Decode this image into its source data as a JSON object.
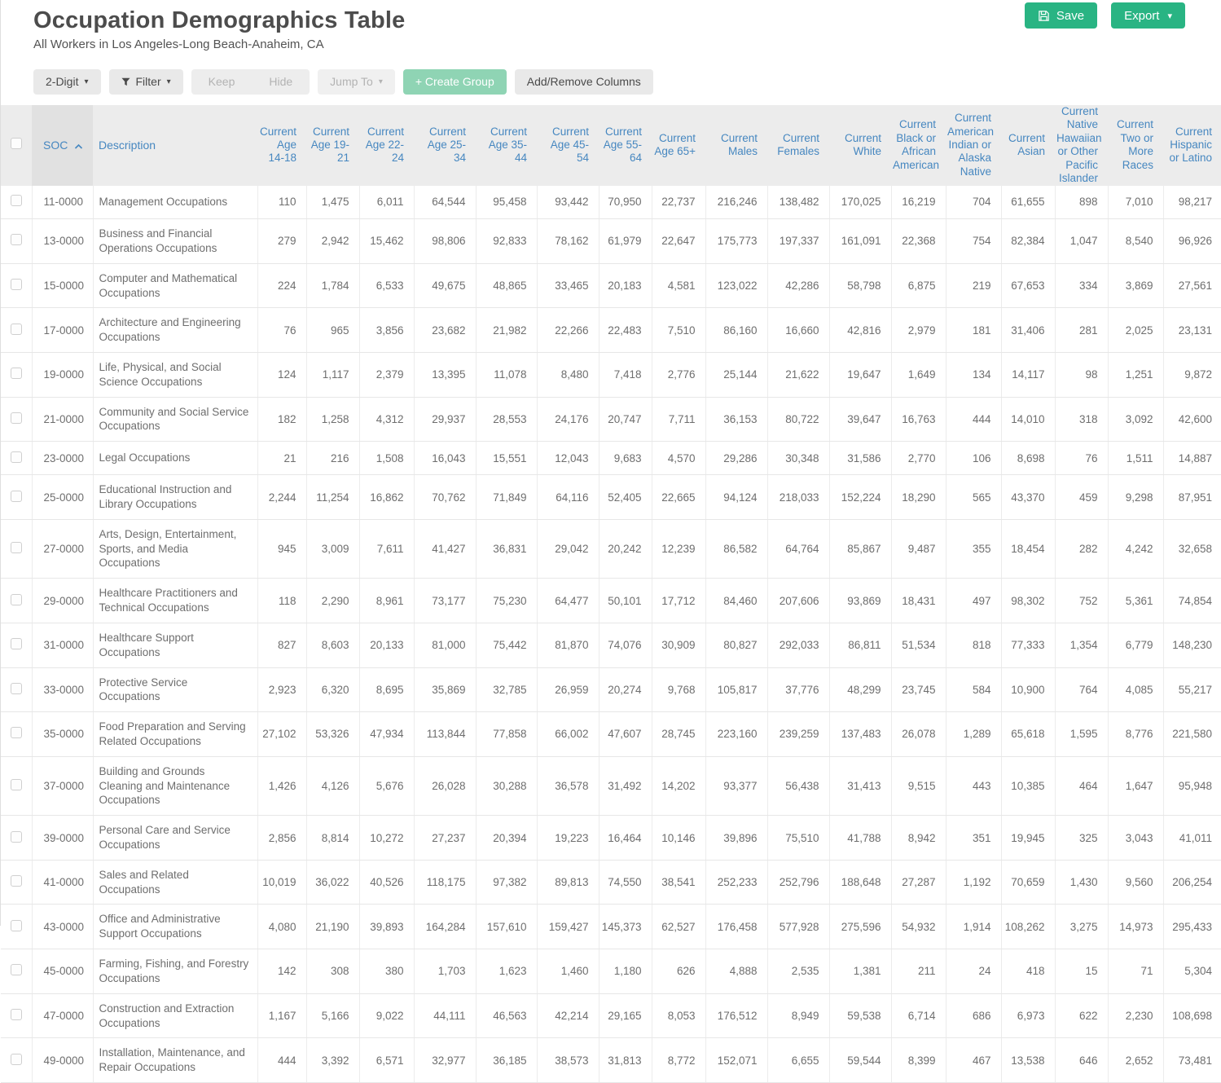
{
  "page": {
    "title": "Occupation Demographics Table",
    "subtitle": "All Workers in Los Angeles-Long Beach-Anaheim, CA"
  },
  "actions": {
    "save": "Save",
    "export": "Export"
  },
  "toolbar": {
    "digit": "2-Digit",
    "filter": "Filter",
    "keep": "Keep",
    "hide": "Hide",
    "jump_to": "Jump To",
    "create_group": "+ Create Group",
    "add_remove_columns": "Add/Remove Columns"
  },
  "colors": {
    "accent_green": "#29b483",
    "muted_green": "#8fd4b4",
    "header_blue": "#4687c0"
  },
  "table": {
    "sort": {
      "column": "SOC",
      "direction": "ascending"
    },
    "columns": {
      "soc": "SOC",
      "description": "Description",
      "numeric": [
        "Current Age 14-18",
        "Current Age 19-21",
        "Current Age 22-24",
        "Current Age 25-34",
        "Current Age 35-44",
        "Current Age 45-54",
        "Current Age 55-64",
        "Current Age 65+",
        "Current Males",
        "Current Females",
        "Current White",
        "Current Black or African American",
        "Current American Indian or Alaska Native",
        "Current Asian",
        "Current Native Hawaiian or Other Pacific Islander",
        "Current Two or More Races",
        "Current Hispanic or Latino"
      ]
    },
    "rows": [
      {
        "soc": "11-0000",
        "description": "Management Occupations",
        "values": [
          "110",
          "1,475",
          "6,011",
          "64,544",
          "95,458",
          "93,442",
          "70,950",
          "22,737",
          "216,246",
          "138,482",
          "170,025",
          "16,219",
          "704",
          "61,655",
          "898",
          "7,010",
          "98,217"
        ]
      },
      {
        "soc": "13-0000",
        "description": "Business and Financial Operations Occupations",
        "values": [
          "279",
          "2,942",
          "15,462",
          "98,806",
          "92,833",
          "78,162",
          "61,979",
          "22,647",
          "175,773",
          "197,337",
          "161,091",
          "22,368",
          "754",
          "82,384",
          "1,047",
          "8,540",
          "96,926"
        ]
      },
      {
        "soc": "15-0000",
        "description": "Computer and Mathematical Occupations",
        "values": [
          "224",
          "1,784",
          "6,533",
          "49,675",
          "48,865",
          "33,465",
          "20,183",
          "4,581",
          "123,022",
          "42,286",
          "58,798",
          "6,875",
          "219",
          "67,653",
          "334",
          "3,869",
          "27,561"
        ]
      },
      {
        "soc": "17-0000",
        "description": "Architecture and Engineering Occupations",
        "values": [
          "76",
          "965",
          "3,856",
          "23,682",
          "21,982",
          "22,266",
          "22,483",
          "7,510",
          "86,160",
          "16,660",
          "42,816",
          "2,979",
          "181",
          "31,406",
          "281",
          "2,025",
          "23,131"
        ]
      },
      {
        "soc": "19-0000",
        "description": "Life, Physical, and Social Science Occupations",
        "values": [
          "124",
          "1,117",
          "2,379",
          "13,395",
          "11,078",
          "8,480",
          "7,418",
          "2,776",
          "25,144",
          "21,622",
          "19,647",
          "1,649",
          "134",
          "14,117",
          "98",
          "1,251",
          "9,872"
        ]
      },
      {
        "soc": "21-0000",
        "description": "Community and Social Service Occupations",
        "values": [
          "182",
          "1,258",
          "4,312",
          "29,937",
          "28,553",
          "24,176",
          "20,747",
          "7,711",
          "36,153",
          "80,722",
          "39,647",
          "16,763",
          "444",
          "14,010",
          "318",
          "3,092",
          "42,600"
        ]
      },
      {
        "soc": "23-0000",
        "description": "Legal Occupations",
        "values": [
          "21",
          "216",
          "1,508",
          "16,043",
          "15,551",
          "12,043",
          "9,683",
          "4,570",
          "29,286",
          "30,348",
          "31,586",
          "2,770",
          "106",
          "8,698",
          "76",
          "1,511",
          "14,887"
        ]
      },
      {
        "soc": "25-0000",
        "description": "Educational Instruction and Library Occupations",
        "values": [
          "2,244",
          "11,254",
          "16,862",
          "70,762",
          "71,849",
          "64,116",
          "52,405",
          "22,665",
          "94,124",
          "218,033",
          "152,224",
          "18,290",
          "565",
          "43,370",
          "459",
          "9,298",
          "87,951"
        ]
      },
      {
        "soc": "27-0000",
        "description": "Arts, Design, Entertainment, Sports, and Media Occupations",
        "values": [
          "945",
          "3,009",
          "7,611",
          "41,427",
          "36,831",
          "29,042",
          "20,242",
          "12,239",
          "86,582",
          "64,764",
          "85,867",
          "9,487",
          "355",
          "18,454",
          "282",
          "4,242",
          "32,658"
        ]
      },
      {
        "soc": "29-0000",
        "description": "Healthcare Practitioners and Technical Occupations",
        "values": [
          "118",
          "2,290",
          "8,961",
          "73,177",
          "75,230",
          "64,477",
          "50,101",
          "17,712",
          "84,460",
          "207,606",
          "93,869",
          "18,431",
          "497",
          "98,302",
          "752",
          "5,361",
          "74,854"
        ]
      },
      {
        "soc": "31-0000",
        "description": "Healthcare Support Occupations",
        "values": [
          "827",
          "8,603",
          "20,133",
          "81,000",
          "75,442",
          "81,870",
          "74,076",
          "30,909",
          "80,827",
          "292,033",
          "86,811",
          "51,534",
          "818",
          "77,333",
          "1,354",
          "6,779",
          "148,230"
        ]
      },
      {
        "soc": "33-0000",
        "description": "Protective Service Occupations",
        "values": [
          "2,923",
          "6,320",
          "8,695",
          "35,869",
          "32,785",
          "26,959",
          "20,274",
          "9,768",
          "105,817",
          "37,776",
          "48,299",
          "23,745",
          "584",
          "10,900",
          "764",
          "4,085",
          "55,217"
        ]
      },
      {
        "soc": "35-0000",
        "description": "Food Preparation and Serving Related Occupations",
        "values": [
          "27,102",
          "53,326",
          "47,934",
          "113,844",
          "77,858",
          "66,002",
          "47,607",
          "28,745",
          "223,160",
          "239,259",
          "137,483",
          "26,078",
          "1,289",
          "65,618",
          "1,595",
          "8,776",
          "221,580"
        ]
      },
      {
        "soc": "37-0000",
        "description": "Building and Grounds Cleaning and Maintenance Occupations",
        "values": [
          "1,426",
          "4,126",
          "5,676",
          "26,028",
          "30,288",
          "36,578",
          "31,492",
          "14,202",
          "93,377",
          "56,438",
          "31,413",
          "9,515",
          "443",
          "10,385",
          "464",
          "1,647",
          "95,948"
        ]
      },
      {
        "soc": "39-0000",
        "description": "Personal Care and Service Occupations",
        "values": [
          "2,856",
          "8,814",
          "10,272",
          "27,237",
          "20,394",
          "19,223",
          "16,464",
          "10,146",
          "39,896",
          "75,510",
          "41,788",
          "8,942",
          "351",
          "19,945",
          "325",
          "3,043",
          "41,011"
        ]
      },
      {
        "soc": "41-0000",
        "description": "Sales and Related Occupations",
        "values": [
          "10,019",
          "36,022",
          "40,526",
          "118,175",
          "97,382",
          "89,813",
          "74,550",
          "38,541",
          "252,233",
          "252,796",
          "188,648",
          "27,287",
          "1,192",
          "70,659",
          "1,430",
          "9,560",
          "206,254"
        ]
      },
      {
        "soc": "43-0000",
        "description": "Office and Administrative Support Occupations",
        "values": [
          "4,080",
          "21,190",
          "39,893",
          "164,284",
          "157,610",
          "159,427",
          "145,373",
          "62,527",
          "176,458",
          "577,928",
          "275,596",
          "54,932",
          "1,914",
          "108,262",
          "3,275",
          "14,973",
          "295,433"
        ]
      },
      {
        "soc": "45-0000",
        "description": "Farming, Fishing, and Forestry Occupations",
        "values": [
          "142",
          "308",
          "380",
          "1,703",
          "1,623",
          "1,460",
          "1,180",
          "626",
          "4,888",
          "2,535",
          "1,381",
          "211",
          "24",
          "418",
          "15",
          "71",
          "5,304"
        ]
      },
      {
        "soc": "47-0000",
        "description": "Construction and Extraction Occupations",
        "values": [
          "1,167",
          "5,166",
          "9,022",
          "44,111",
          "46,563",
          "42,214",
          "29,165",
          "8,053",
          "176,512",
          "8,949",
          "59,538",
          "6,714",
          "686",
          "6,973",
          "622",
          "2,230",
          "108,698"
        ]
      },
      {
        "soc": "49-0000",
        "description": "Installation, Maintenance, and Repair Occupations",
        "values": [
          "444",
          "3,392",
          "6,571",
          "32,977",
          "36,185",
          "38,573",
          "31,813",
          "8,772",
          "152,071",
          "6,655",
          "59,544",
          "8,399",
          "467",
          "13,538",
          "646",
          "2,652",
          "73,481"
        ]
      }
    ]
  }
}
